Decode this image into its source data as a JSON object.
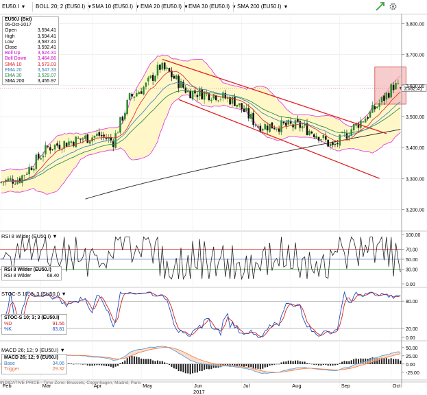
{
  "toolbar": {
    "instrument": "EU50.I",
    "boll": "BOLL 20; 2 (EU50.I)",
    "sma10": "SMA 10 (EU50.I)",
    "ema20": "EMA 20 (EU50.I)",
    "ema30": "EMA 30 (EU50.I)",
    "sma200": "SMA 200 (EU50.I)"
  },
  "info_box": {
    "title": "EU50.I (Bid)",
    "date": "05-Oct-2017",
    "rows": [
      {
        "label": "Open",
        "value": "3,594.41",
        "color": "#000000"
      },
      {
        "label": "High",
        "value": "3,594.41",
        "color": "#000000"
      },
      {
        "label": "Low",
        "value": "3,587.41",
        "color": "#000000"
      },
      {
        "label": "Close",
        "value": "3,592.41",
        "color": "#000000"
      },
      {
        "label": "Boll Up",
        "value": "3,624.31",
        "color": "#cc00cc"
      },
      {
        "label": "Boll Down",
        "value": "3,464.66",
        "color": "#cc00cc"
      },
      {
        "label": "SMA 10",
        "value": "3,573.03",
        "color": "#e02020"
      },
      {
        "label": "EMA 20",
        "value": "3,547.33",
        "color": "#3a7ab8"
      },
      {
        "label": "EMA 30",
        "value": "3,529.07",
        "color": "#2a8a4a"
      },
      {
        "label": "SMA 200",
        "value": "3,455.97",
        "color": "#000000"
      }
    ]
  },
  "rsi": {
    "header": "RSI 8 Wilder (EU50.I)",
    "title": "RSI 8 Wilder (EU50.I)",
    "label": "RSI 8 Wilder",
    "value": "68.40"
  },
  "stoch": {
    "header": "STOC-S 10; 3; 3 (EU50.I)",
    "title": "STOC-S 10; 3; 3 (EU50.I)",
    "d_label": "%D",
    "d_value": "91.56",
    "k_label": "%K",
    "k_value": "83.81"
  },
  "macd": {
    "header": "MACD 26; 12; 9 (EU50.I)",
    "title": "MACD 26; 12; 9 (EU50.I)",
    "base_label": "Base",
    "base_value": "34.06",
    "trigger_label": "Trigger",
    "trigger_value": "29.32"
  },
  "footer": "INDICATIVE PRICE - Time Zone: Brussels, Copenhagen, Madrid, Paris",
  "price_label": "3,592.41",
  "months": [
    "Feb",
    "Mar",
    "Apr",
    "May",
    "Jun",
    "Jul",
    "Aug",
    "Sep",
    "Oct"
  ],
  "year": "2017",
  "chart_data": {
    "type": "candlestick",
    "instrument": "EU50.I",
    "xlabels": [
      "Feb",
      "Mar",
      "Apr",
      "May",
      "Jun",
      "Jul",
      "Aug",
      "Sep",
      "Oct"
    ],
    "price_axis": {
      "ticks": [
        "3,800.00",
        "3,700.00",
        "3,600.00",
        "3,500.00",
        "3,400.00",
        "3,300.00",
        "3,200.00"
      ],
      "values": [
        3800,
        3700,
        3600,
        3500,
        3400,
        3300,
        3200
      ],
      "range": [
        3130,
        3830
      ]
    },
    "rsi_axis": {
      "ticks": [
        "100.00",
        "70.00",
        "50.00",
        "30.00",
        "0.00"
      ],
      "values": [
        100,
        70,
        50,
        30,
        0
      ]
    },
    "stoch_axis": {
      "ticks": [
        "80.00",
        "20.00",
        "0.00"
      ],
      "values": [
        80,
        20,
        0
      ],
      "range": [
        0,
        100
      ]
    },
    "macd_axis": {
      "ticks": [
        "50.00",
        "25.00",
        "0.00",
        "-25.00"
      ],
      "values": [
        50,
        25,
        0,
        -25
      ],
      "range": [
        -40,
        60
      ]
    },
    "close_monthly_approx": [
      {
        "month": "Feb",
        "close": 3300
      },
      {
        "month": "Mar",
        "close": 3440
      },
      {
        "month": "Apr",
        "close": 3570
      },
      {
        "month": "May",
        "close": 3620
      },
      {
        "month": "Jun",
        "close": 3560
      },
      {
        "month": "Jul",
        "close": 3460
      },
      {
        "month": "Aug",
        "close": 3430
      },
      {
        "month": "Sep",
        "close": 3560
      },
      {
        "month": "Oct",
        "close": 3592.41
      }
    ],
    "colors": {
      "bull": "#2e8b2e",
      "bear": "#111111",
      "bollinger": "#e040e0",
      "boll_fill": "#fff7c8",
      "sma10": "#e03030",
      "ema20": "#4a86c0",
      "ema30": "#2e8b4e",
      "sma200": "#333333",
      "channel": "#e02020",
      "rsi_line": "#222222",
      "stoch_k": "#1f4fbf",
      "stoch_d": "#d02020",
      "macd_base": "#5aa0e0",
      "macd_trigger": "#f08050",
      "macd_hist": "#222222",
      "highlight": "#f4b6b6"
    }
  }
}
